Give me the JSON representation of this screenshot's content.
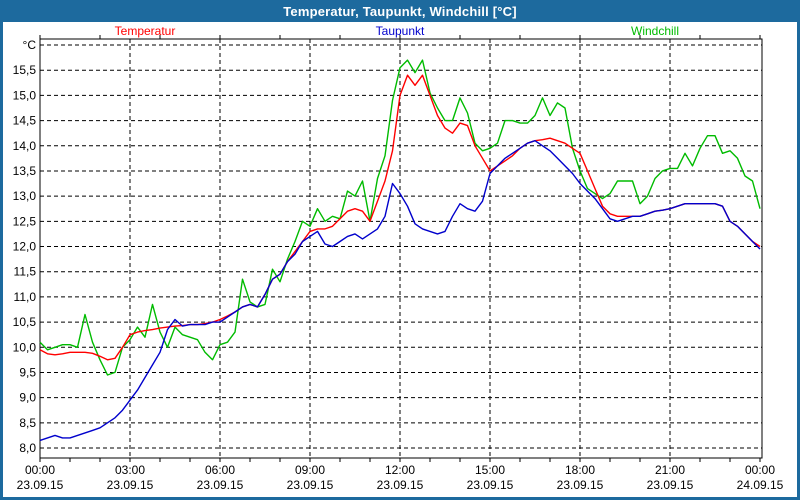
{
  "window": {
    "title": "Temperatur, Taupunkt, Windchill [°C]",
    "titlebar_color": "#1d6a9e",
    "frame_color": "#1d6a9e"
  },
  "legend": [
    {
      "label": "Temperatur",
      "color": "#ff0000"
    },
    {
      "label": "Taupunkt",
      "color": "#0000cc"
    },
    {
      "label": "Windchill",
      "color": "#00bb00"
    }
  ],
  "chart_data": {
    "type": "line",
    "title": "Temperatur, Taupunkt, Windchill [°C]",
    "unit_label": "°C",
    "grid": "dashed",
    "ylim": [
      8.0,
      16.0
    ],
    "y_tick_step": 0.5,
    "y_tick_labels": [
      "15,5",
      "15,0",
      "14,5",
      "14,0",
      "13,5",
      "13,0",
      "12,5",
      "12,0",
      "11,5",
      "11,0",
      "10,5",
      "10,0",
      "9,5",
      "9,0",
      "8,5",
      "8,0"
    ],
    "x_start_hour": 0,
    "x_end_hour": 24,
    "x_step_hours": 0.25,
    "x_ticks": [
      {
        "time": "00:00",
        "date": "23.09.15"
      },
      {
        "time": "03:00",
        "date": "23.09.15"
      },
      {
        "time": "06:00",
        "date": "23.09.15"
      },
      {
        "time": "09:00",
        "date": "23.09.15"
      },
      {
        "time": "12:00",
        "date": "23.09.15"
      },
      {
        "time": "15:00",
        "date": "23.09.15"
      },
      {
        "time": "18:00",
        "date": "23.09.15"
      },
      {
        "time": "21:00",
        "date": "23.09.15"
      },
      {
        "time": "00:00",
        "date": "24.09.15"
      }
    ],
    "series": [
      {
        "name": "Temperatur",
        "color": "#ff0000",
        "values": [
          9.95,
          9.87,
          9.85,
          9.87,
          9.9,
          9.9,
          9.9,
          9.88,
          9.82,
          9.75,
          9.78,
          10.0,
          10.25,
          10.3,
          10.33,
          10.35,
          10.38,
          10.4,
          10.42,
          10.43,
          10.45,
          10.45,
          10.47,
          10.5,
          10.55,
          10.62,
          10.7,
          10.8,
          10.85,
          10.8,
          11.05,
          11.35,
          11.45,
          11.7,
          11.9,
          12.1,
          12.3,
          12.35,
          12.35,
          12.4,
          12.55,
          12.7,
          12.75,
          12.7,
          12.5,
          12.9,
          13.3,
          13.9,
          15.0,
          15.4,
          15.2,
          15.4,
          15.0,
          14.6,
          14.35,
          14.25,
          14.45,
          14.4,
          14.0,
          13.75,
          13.5,
          13.6,
          13.7,
          13.8,
          13.95,
          14.05,
          14.1,
          14.12,
          14.15,
          14.1,
          14.05,
          13.95,
          13.85,
          13.5,
          13.15,
          12.8,
          12.65,
          12.6,
          12.6,
          12.6,
          12.6,
          12.65,
          12.7,
          12.72,
          12.75,
          12.8,
          12.85,
          12.85,
          12.85,
          12.85,
          12.85,
          12.8,
          12.5,
          12.4,
          12.25,
          12.1,
          12.0
        ]
      },
      {
        "name": "Taupunkt",
        "color": "#0000cc",
        "values": [
          8.15,
          8.2,
          8.25,
          8.2,
          8.2,
          8.25,
          8.3,
          8.35,
          8.4,
          8.5,
          8.6,
          8.75,
          8.95,
          9.15,
          9.4,
          9.65,
          9.9,
          10.35,
          10.55,
          10.42,
          10.45,
          10.45,
          10.45,
          10.5,
          10.5,
          10.6,
          10.7,
          10.8,
          10.85,
          10.8,
          11.05,
          11.35,
          11.45,
          11.7,
          11.85,
          12.1,
          12.2,
          12.3,
          12.05,
          12.0,
          12.1,
          12.2,
          12.25,
          12.15,
          12.25,
          12.35,
          12.6,
          13.25,
          13.05,
          12.8,
          12.45,
          12.35,
          12.3,
          12.25,
          12.3,
          12.6,
          12.85,
          12.75,
          12.7,
          12.9,
          13.45,
          13.6,
          13.75,
          13.85,
          13.95,
          14.05,
          14.1,
          14.0,
          13.9,
          13.75,
          13.6,
          13.45,
          13.25,
          13.1,
          12.95,
          12.75,
          12.55,
          12.5,
          12.55,
          12.6,
          12.6,
          12.65,
          12.7,
          12.72,
          12.75,
          12.8,
          12.85,
          12.85,
          12.85,
          12.85,
          12.85,
          12.8,
          12.5,
          12.4,
          12.25,
          12.1,
          11.95
        ]
      },
      {
        "name": "Windchill",
        "color": "#00bb00",
        "values": [
          10.1,
          9.95,
          10.0,
          10.05,
          10.05,
          10.0,
          10.65,
          10.1,
          9.75,
          9.45,
          9.5,
          10.0,
          10.15,
          10.4,
          10.2,
          10.85,
          10.3,
          10.0,
          10.4,
          10.25,
          10.2,
          10.15,
          9.9,
          9.75,
          10.05,
          10.1,
          10.3,
          11.35,
          10.9,
          10.8,
          10.85,
          11.55,
          11.3,
          11.75,
          12.1,
          12.5,
          12.4,
          12.75,
          12.5,
          12.6,
          12.55,
          13.1,
          13.0,
          13.3,
          12.5,
          13.35,
          13.8,
          14.9,
          15.55,
          15.7,
          15.45,
          15.7,
          15.05,
          14.75,
          14.5,
          14.5,
          14.95,
          14.65,
          14.05,
          13.9,
          13.95,
          14.05,
          14.5,
          14.5,
          14.45,
          14.45,
          14.6,
          14.95,
          14.6,
          14.85,
          14.75,
          13.95,
          13.5,
          13.15,
          13.05,
          12.95,
          13.05,
          13.3,
          13.3,
          13.3,
          12.85,
          13.0,
          13.35,
          13.5,
          13.55,
          13.55,
          13.85,
          13.6,
          13.95,
          14.2,
          14.2,
          13.85,
          13.9,
          13.75,
          13.4,
          13.3,
          12.75
        ]
      }
    ]
  }
}
